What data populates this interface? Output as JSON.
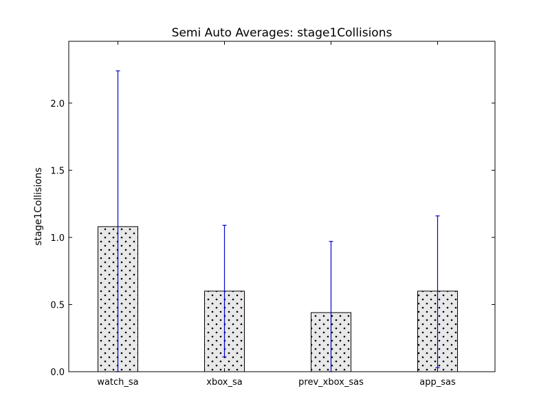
{
  "chart_data": {
    "type": "bar",
    "title": "Semi Auto Averages: stage1Collisions",
    "xlabel": "",
    "ylabel": "stage1Collisions",
    "categories": [
      "watch_sa",
      "xbox_sa",
      "prev_xbox_sas",
      "app_sas"
    ],
    "values": [
      1.08,
      0.6,
      0.44,
      0.6
    ],
    "error_upper": [
      2.24,
      1.09,
      0.97,
      1.16
    ],
    "error_lower": [
      0.0,
      0.11,
      0.0,
      0.03
    ],
    "ylim": [
      0.0,
      2.46
    ],
    "yticks": [
      0.0,
      0.5,
      1.0,
      1.5,
      2.0
    ],
    "ytick_labels": [
      "0.0",
      "0.5",
      "1.0",
      "1.5",
      "2.0"
    ],
    "grid": false,
    "colors": {
      "bar_fill": "#e8e8e8",
      "bar_edge": "#000000",
      "hatch_dot": "#000000",
      "error_bar": "#0000cc"
    }
  }
}
